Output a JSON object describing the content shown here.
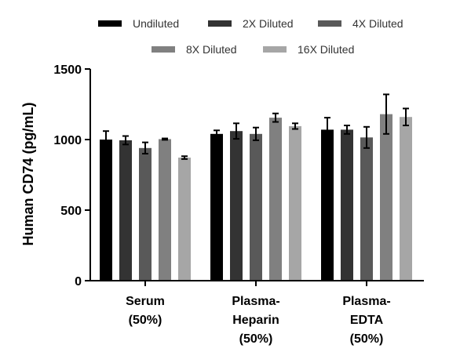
{
  "chart_data": {
    "type": "bar",
    "title": "",
    "xlabel": "",
    "ylabel": "Human CD74 (pg/mL)",
    "ylim": [
      0,
      1500
    ],
    "yticks": [
      0,
      500,
      1000,
      1500
    ],
    "categories": [
      [
        "Serum",
        "(50%)"
      ],
      [
        "Plasma-",
        "Heparin",
        "(50%)"
      ],
      [
        "Plasma-",
        "EDTA",
        "(50%)"
      ]
    ],
    "series": [
      {
        "name": "Undiluted",
        "color": "#000000",
        "values": [
          1000,
          1040,
          1070
        ],
        "errors": [
          60,
          25,
          85
        ]
      },
      {
        "name": "2X Diluted",
        "color": "#333333",
        "values": [
          995,
          1060,
          1070
        ],
        "errors": [
          30,
          55,
          30
        ]
      },
      {
        "name": "4X Diluted",
        "color": "#595959",
        "values": [
          940,
          1040,
          1015
        ],
        "errors": [
          40,
          45,
          75
        ]
      },
      {
        "name": "8X Diluted",
        "color": "#808080",
        "values": [
          1003,
          1155,
          1180
        ],
        "errors": [
          5,
          30,
          140
        ]
      },
      {
        "name": "16X Diluted",
        "color": "#a6a6a6",
        "values": [
          872,
          1095,
          1160
        ],
        "errors": [
          10,
          20,
          60
        ]
      }
    ],
    "legend_position": "top"
  }
}
